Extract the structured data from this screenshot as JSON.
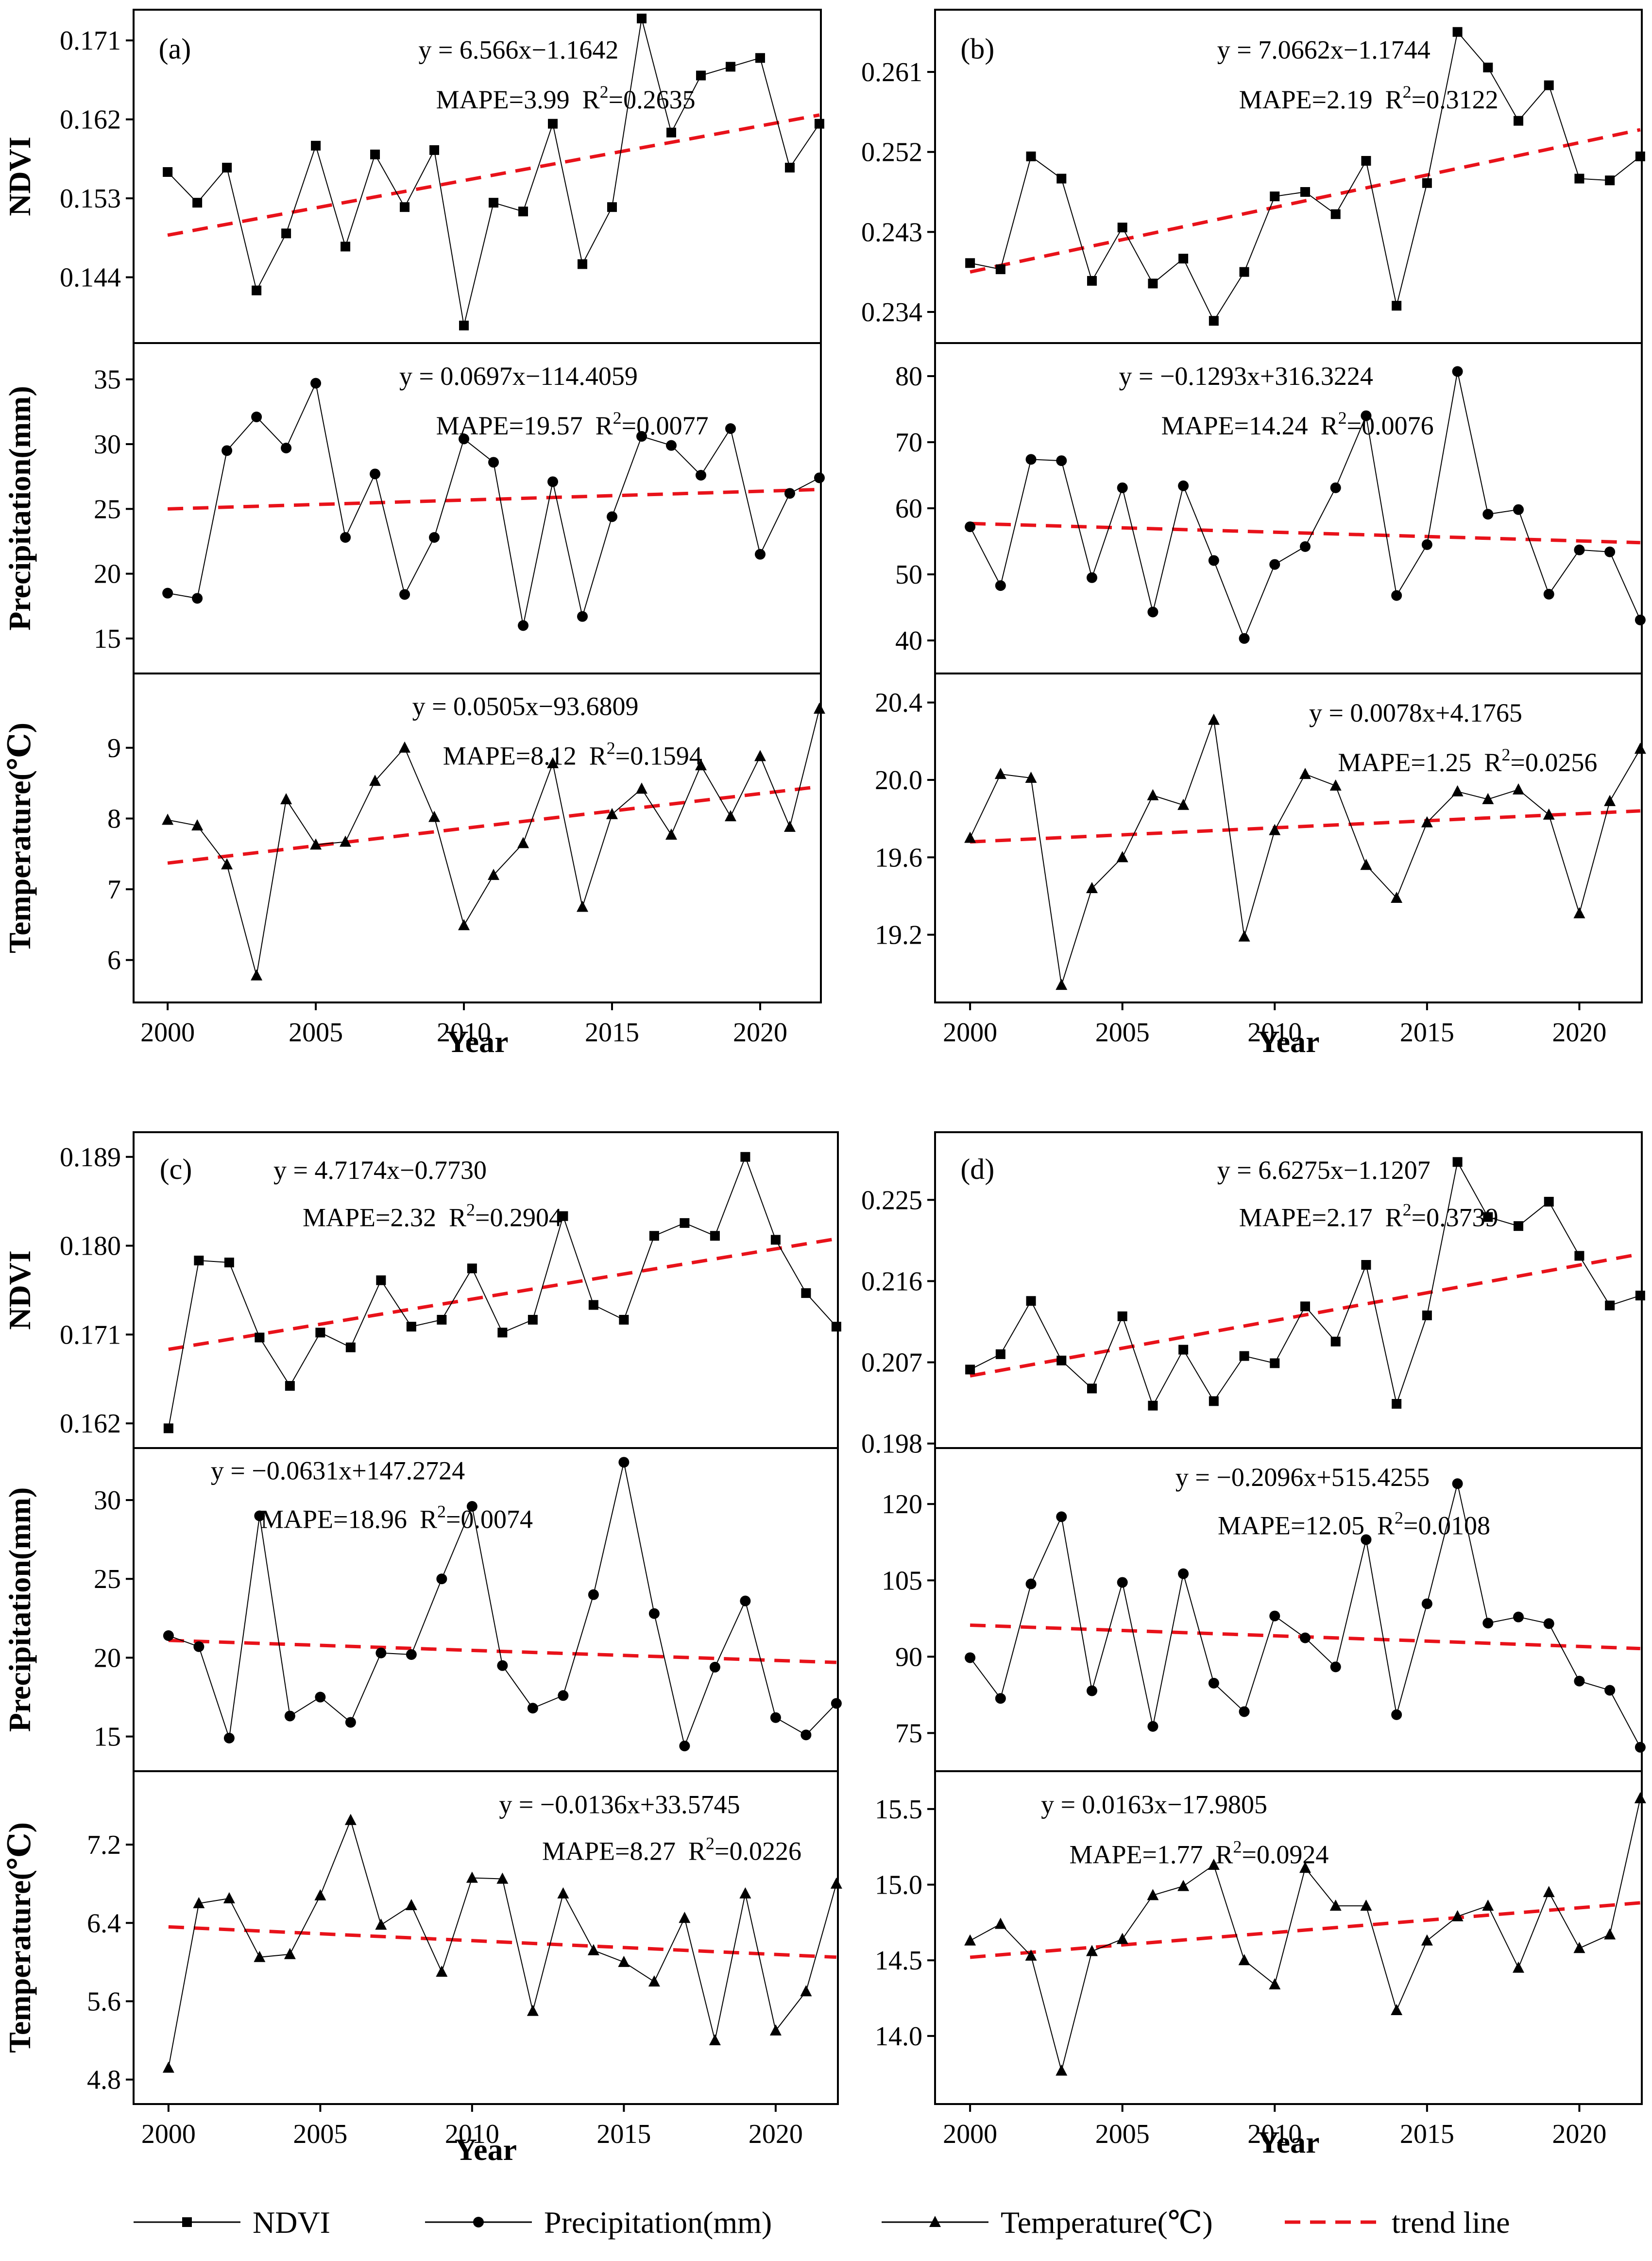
{
  "chart_data": [
    {
      "panel": "(a)",
      "type": "line",
      "x": [
        2000,
        2001,
        2002,
        2003,
        2004,
        2005,
        2006,
        2007,
        2008,
        2009,
        2010,
        2011,
        2012,
        2013,
        2014,
        2015,
        2016,
        2017,
        2018,
        2019,
        2020,
        2021,
        2022
      ],
      "xlabel": "Year",
      "xticks": [
        2000,
        2005,
        2010,
        2015,
        2020
      ],
      "subplots": [
        {
          "key": "ndvi",
          "name": "NDVI",
          "ylabel": "NDVI",
          "marker": "square",
          "ylim": [
            0.1365,
            0.1745
          ],
          "yticks": [
            "0.171",
            "0.162",
            "0.153",
            "0.144"
          ],
          "values": [
            0.156,
            0.1525,
            0.1565,
            0.1425,
            0.149,
            0.159,
            0.1475,
            0.158,
            0.152,
            0.1585,
            0.1385,
            0.1525,
            0.1515,
            0.1615,
            0.1455,
            0.152,
            0.1735,
            0.1605,
            0.167,
            0.168,
            0.169,
            0.1565,
            0.1615
          ],
          "trend": [
            0.1488,
            0.1625
          ],
          "equation": "y = 6.566x−1.1642",
          "mape": "MAPE=3.99",
          "r2": "R",
          "r2_value": "=0.2635"
        },
        {
          "key": "precip",
          "name": "Precipitation(mm)",
          "ylabel": "Precipitation(mm)",
          "marker": "circle",
          "ylim": [
            12.3,
            37.8
          ],
          "yticks": [
            "35",
            "30",
            "25",
            "20",
            "15"
          ],
          "values": [
            18.5,
            18.1,
            29.5,
            32.1,
            29.7,
            34.7,
            22.8,
            27.7,
            18.4,
            22.8,
            30.4,
            28.6,
            16.0,
            27.1,
            16.7,
            24.4,
            30.6,
            29.9,
            27.6,
            31.2,
            21.5,
            26.2,
            27.4
          ],
          "trend": [
            25.0,
            26.5
          ],
          "equation": "y = 0.0697x−114.4059",
          "mape": "MAPE=19.57",
          "r2": "R",
          "r2_value": "=0.0077"
        },
        {
          "key": "temp",
          "name": "Temperature(℃)",
          "ylabel": "Temperature(℃)",
          "marker": "triangle",
          "ylim": [
            5.4,
            10.05
          ],
          "yticks": [
            "9",
            "8",
            "7",
            "6"
          ],
          "values": [
            7.98,
            7.9,
            7.35,
            5.78,
            8.27,
            7.63,
            7.67,
            8.53,
            9.0,
            8.02,
            6.49,
            7.2,
            7.65,
            8.78,
            6.75,
            8.06,
            8.42,
            7.77,
            8.75,
            8.03,
            8.88,
            7.88,
            9.55
          ],
          "trend": [
            7.37,
            8.45
          ],
          "equation": "y = 0.0505x−93.6809",
          "mape": "MAPE=8.12",
          "r2": "R",
          "r2_value": "=0.1594"
        }
      ]
    },
    {
      "panel": "(b)",
      "type": "line",
      "x": [
        2000,
        2001,
        2002,
        2003,
        2004,
        2005,
        2006,
        2007,
        2008,
        2009,
        2010,
        2011,
        2012,
        2013,
        2014,
        2015,
        2016,
        2017,
        2018,
        2019,
        2020,
        2021,
        2022
      ],
      "xlabel": "Year",
      "xticks": [
        2000,
        2005,
        2010,
        2015,
        2020
      ],
      "subplots": [
        {
          "key": "ndvi",
          "name": "NDVI",
          "ylabel": "",
          "marker": "square",
          "ylim": [
            0.2305,
            0.268
          ],
          "yticks": [
            "0.261",
            "0.252",
            "0.243",
            "0.234"
          ],
          "values": [
            0.2395,
            0.2388,
            0.2515,
            0.249,
            0.2375,
            0.2435,
            0.2372,
            0.24,
            0.233,
            0.2385,
            0.247,
            0.2475,
            0.245,
            0.251,
            0.2347,
            0.2485,
            0.2655,
            0.2615,
            0.2555,
            0.2595,
            0.249,
            0.2488,
            0.2515
          ],
          "trend": [
            0.2385,
            0.2545
          ],
          "equation": "y = 7.0662x−1.1744",
          "mape": "MAPE=2.19",
          "r2": "R",
          "r2_value": "=0.3122"
        },
        {
          "key": "precip",
          "name": "Precipitation(mm)",
          "ylabel": "",
          "marker": "circle",
          "ylim": [
            35.0,
            85.0
          ],
          "yticks": [
            "80",
            "70",
            "60",
            "50",
            "40"
          ],
          "values": [
            57.2,
            48.3,
            67.4,
            67.2,
            49.5,
            63.1,
            44.3,
            63.4,
            52.1,
            40.3,
            51.5,
            54.2,
            63.1,
            74.0,
            46.8,
            54.5,
            80.7,
            59.1,
            59.8,
            47.0,
            53.7,
            53.4,
            43.1
          ],
          "trend": [
            57.7,
            54.8
          ],
          "equation": "y = −0.1293x+316.3224",
          "mape": "MAPE=14.24",
          "r2": "R",
          "r2_value": "=0.0076"
        },
        {
          "key": "temp",
          "name": "Temperature(℃)",
          "ylabel": "",
          "marker": "triangle",
          "ylim": [
            18.85,
            20.55
          ],
          "yticks": [
            "20.4",
            "20.0",
            "19.6",
            "19.2"
          ],
          "values": [
            19.7,
            20.03,
            20.01,
            18.94,
            19.44,
            19.6,
            19.92,
            19.87,
            20.31,
            19.19,
            19.74,
            20.03,
            19.97,
            19.56,
            19.39,
            19.78,
            19.94,
            19.9,
            19.95,
            19.82,
            19.31,
            19.89,
            20.16
          ],
          "trend": [
            19.68,
            19.84
          ],
          "equation": "y = 0.0078x+4.1765",
          "mape": "MAPE=1.25",
          "r2": "R",
          "r2_value": "=0.0256"
        }
      ]
    },
    {
      "panel": "(c)",
      "type": "line",
      "x": [
        2000,
        2001,
        2002,
        2003,
        2004,
        2005,
        2006,
        2007,
        2008,
        2009,
        2010,
        2011,
        2012,
        2013,
        2014,
        2015,
        2016,
        2017,
        2018,
        2019,
        2020,
        2021,
        2022
      ],
      "xlabel": "Year",
      "xticks": [
        2000,
        2005,
        2010,
        2015,
        2020
      ],
      "subplots": [
        {
          "key": "ndvi",
          "name": "NDVI",
          "ylabel": "NDVI",
          "marker": "square",
          "ylim": [
            0.1595,
            0.1915
          ],
          "yticks": [
            "0.189",
            "0.180",
            "0.171",
            "0.162"
          ],
          "values": [
            0.1615,
            0.1785,
            0.1783,
            0.1707,
            0.1658,
            0.1712,
            0.1697,
            0.1765,
            0.1718,
            0.1725,
            0.1777,
            0.1712,
            0.1725,
            0.183,
            0.174,
            0.1725,
            0.181,
            0.1823,
            0.181,
            0.189,
            0.1806,
            0.1752,
            0.1718
          ],
          "trend": [
            0.1695,
            0.1807
          ],
          "equation": "y = 4.7174x−0.7730",
          "mape": "MAPE=2.32",
          "r2": "R",
          "r2_value": "=0.2904"
        },
        {
          "key": "precip",
          "name": "Precipitation(mm)",
          "ylabel": "Precipitation(mm)",
          "marker": "circle",
          "ylim": [
            12.8,
            33.3
          ],
          "yticks": [
            "30",
            "25",
            "20",
            "15"
          ],
          "values": [
            21.4,
            20.7,
            14.9,
            29.0,
            16.3,
            17.5,
            15.9,
            20.3,
            20.2,
            25.0,
            29.6,
            19.5,
            16.8,
            17.6,
            24.0,
            32.4,
            22.8,
            14.4,
            19.4,
            23.6,
            16.2,
            15.1,
            17.1
          ],
          "trend": [
            21.1,
            19.7
          ],
          "equation": "y = −0.0631x+147.2724",
          "mape": "MAPE=18.96",
          "r2": "R",
          "r2_value": "=0.0074"
        },
        {
          "key": "temp",
          "name": "Temperature(℃)",
          "ylabel": "Temperature(℃)",
          "marker": "triangle",
          "ylim": [
            4.55,
            7.95
          ],
          "yticks": [
            "7.2",
            "6.4",
            "5.6",
            "4.8"
          ],
          "values": [
            4.92,
            6.6,
            6.65,
            6.05,
            6.08,
            6.68,
            7.45,
            6.38,
            6.58,
            5.9,
            6.86,
            6.85,
            5.5,
            6.7,
            6.12,
            6.0,
            5.8,
            6.45,
            5.2,
            6.7,
            5.3,
            5.7,
            6.8
          ],
          "trend": [
            6.36,
            6.05
          ],
          "equation": "y = −0.0136x+33.5745",
          "mape": "MAPE=8.27",
          "r2": "R",
          "r2_value": "=0.0226"
        }
      ]
    },
    {
      "panel": "(d)",
      "type": "line",
      "x": [
        2000,
        2001,
        2002,
        2003,
        2004,
        2005,
        2006,
        2007,
        2008,
        2009,
        2010,
        2011,
        2012,
        2013,
        2014,
        2015,
        2016,
        2017,
        2018,
        2019,
        2020,
        2021,
        2022
      ],
      "xlabel": "Year",
      "xticks": [
        2000,
        2005,
        2010,
        2015,
        2020
      ],
      "subplots": [
        {
          "key": "ndvi",
          "name": "NDVI",
          "ylabel": "",
          "marker": "square",
          "ylim": [
            0.1975,
            0.2325
          ],
          "yticks": [
            "0.225",
            "0.216",
            "0.207",
            "0.198"
          ],
          "values": [
            0.2062,
            0.2079,
            0.2138,
            0.2072,
            0.2041,
            0.2121,
            0.2022,
            0.2084,
            0.2027,
            0.2077,
            0.2069,
            0.2132,
            0.2093,
            0.2178,
            0.2024,
            0.2122,
            0.2292,
            0.2231,
            0.2221,
            0.2248,
            0.2188,
            0.2133,
            0.2144
          ],
          "trend": [
            0.2055,
            0.219
          ],
          "equation": "y = 6.6275x−1.1207",
          "mape": "MAPE=2.17",
          "r2": "R",
          "r2_value": "=0.3739"
        },
        {
          "key": "precip",
          "name": "Precipitation(mm)",
          "ylabel": "",
          "marker": "circle",
          "ylim": [
            67.5,
            131.0
          ],
          "yticks": [
            "120",
            "105",
            "90",
            "75"
          ],
          "values": [
            89.8,
            81.8,
            104.3,
            117.5,
            83.3,
            104.6,
            76.3,
            106.3,
            84.8,
            79.2,
            98.0,
            93.7,
            88.0,
            113.0,
            78.6,
            100.4,
            124.0,
            96.6,
            97.8,
            96.5,
            85.2,
            83.4,
            72.2
          ],
          "trend": [
            96.2,
            91.6
          ],
          "equation": "y = −0.2096x+515.4255",
          "mape": "MAPE=12.05",
          "r2": "R",
          "r2_value": "=0.0108"
        },
        {
          "key": "temp",
          "name": "Temperature(℃)",
          "ylabel": "",
          "marker": "triangle",
          "ylim": [
            13.55,
            15.75
          ],
          "yticks": [
            "15.5",
            "15.0",
            "14.5",
            "14.0"
          ],
          "values": [
            14.63,
            14.74,
            14.53,
            13.77,
            14.56,
            14.64,
            14.93,
            14.99,
            15.13,
            14.5,
            14.34,
            15.11,
            14.86,
            14.86,
            14.17,
            14.63,
            14.79,
            14.86,
            14.45,
            14.95,
            14.58,
            14.67,
            15.57
          ],
          "trend": [
            14.52,
            14.88
          ],
          "equation": "y = 0.0163x−17.9805",
          "mape": "MAPE=1.77",
          "r2": "R",
          "r2_value": "=0.0924"
        }
      ]
    }
  ],
  "legend": [
    {
      "label": "NDVI",
      "marker": "square"
    },
    {
      "label": "Precipitation(mm)",
      "marker": "circle"
    },
    {
      "label": "Temperature(℃)",
      "marker": "triangle"
    },
    {
      "label": "trend line",
      "marker": "dash"
    }
  ],
  "colors": {
    "series": "#000000",
    "trend": "#e8121a",
    "axis": "#000000",
    "background": "#ffffff"
  }
}
